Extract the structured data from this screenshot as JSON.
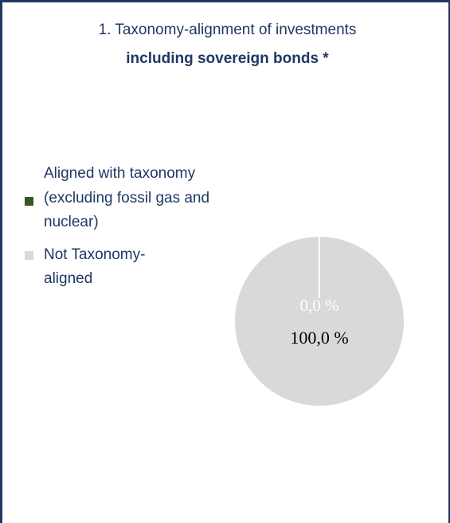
{
  "chart_data": {
    "type": "pie",
    "title": "1. Taxonomy-alignment of investments",
    "subtitle": "including sovereign bonds *",
    "legend_position": "left",
    "slices": [
      {
        "label": "Aligned with taxonomy (excluding fossil gas and nuclear)",
        "value": 0.0,
        "value_label": "0,0 %",
        "color": "#375623"
      },
      {
        "label": "Not Taxonomy-aligned",
        "value": 100.0,
        "value_label": "100,0 %",
        "color": "#d9d9d9"
      }
    ]
  },
  "colors": {
    "border": "#1f3864",
    "text": "#1f3864",
    "slice_divider": "#ffffff"
  }
}
